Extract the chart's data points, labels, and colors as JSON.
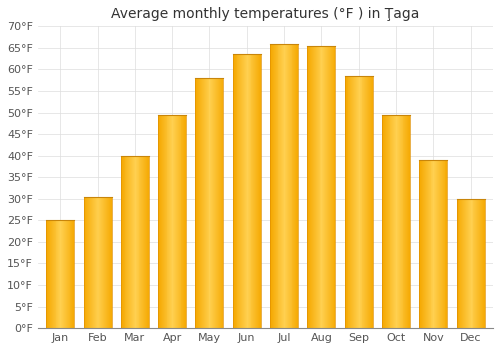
{
  "title": "Average monthly temperatures (°F ) in Ţaga",
  "months": [
    "Jan",
    "Feb",
    "Mar",
    "Apr",
    "May",
    "Jun",
    "Jul",
    "Aug",
    "Sep",
    "Oct",
    "Nov",
    "Dec"
  ],
  "values": [
    25,
    30.5,
    40,
    49.5,
    58,
    63.5,
    66,
    65.5,
    58.5,
    49.5,
    39,
    30
  ],
  "bar_color_center": "#FFD050",
  "bar_color_edge": "#F5A800",
  "background_color": "#FFFFFF",
  "grid_color": "#DDDDDD",
  "ylim": [
    0,
    70
  ],
  "yticks": [
    0,
    5,
    10,
    15,
    20,
    25,
    30,
    35,
    40,
    45,
    50,
    55,
    60,
    65,
    70
  ],
  "title_fontsize": 10,
  "tick_fontsize": 8,
  "font_color": "#555555",
  "bar_width": 0.75
}
